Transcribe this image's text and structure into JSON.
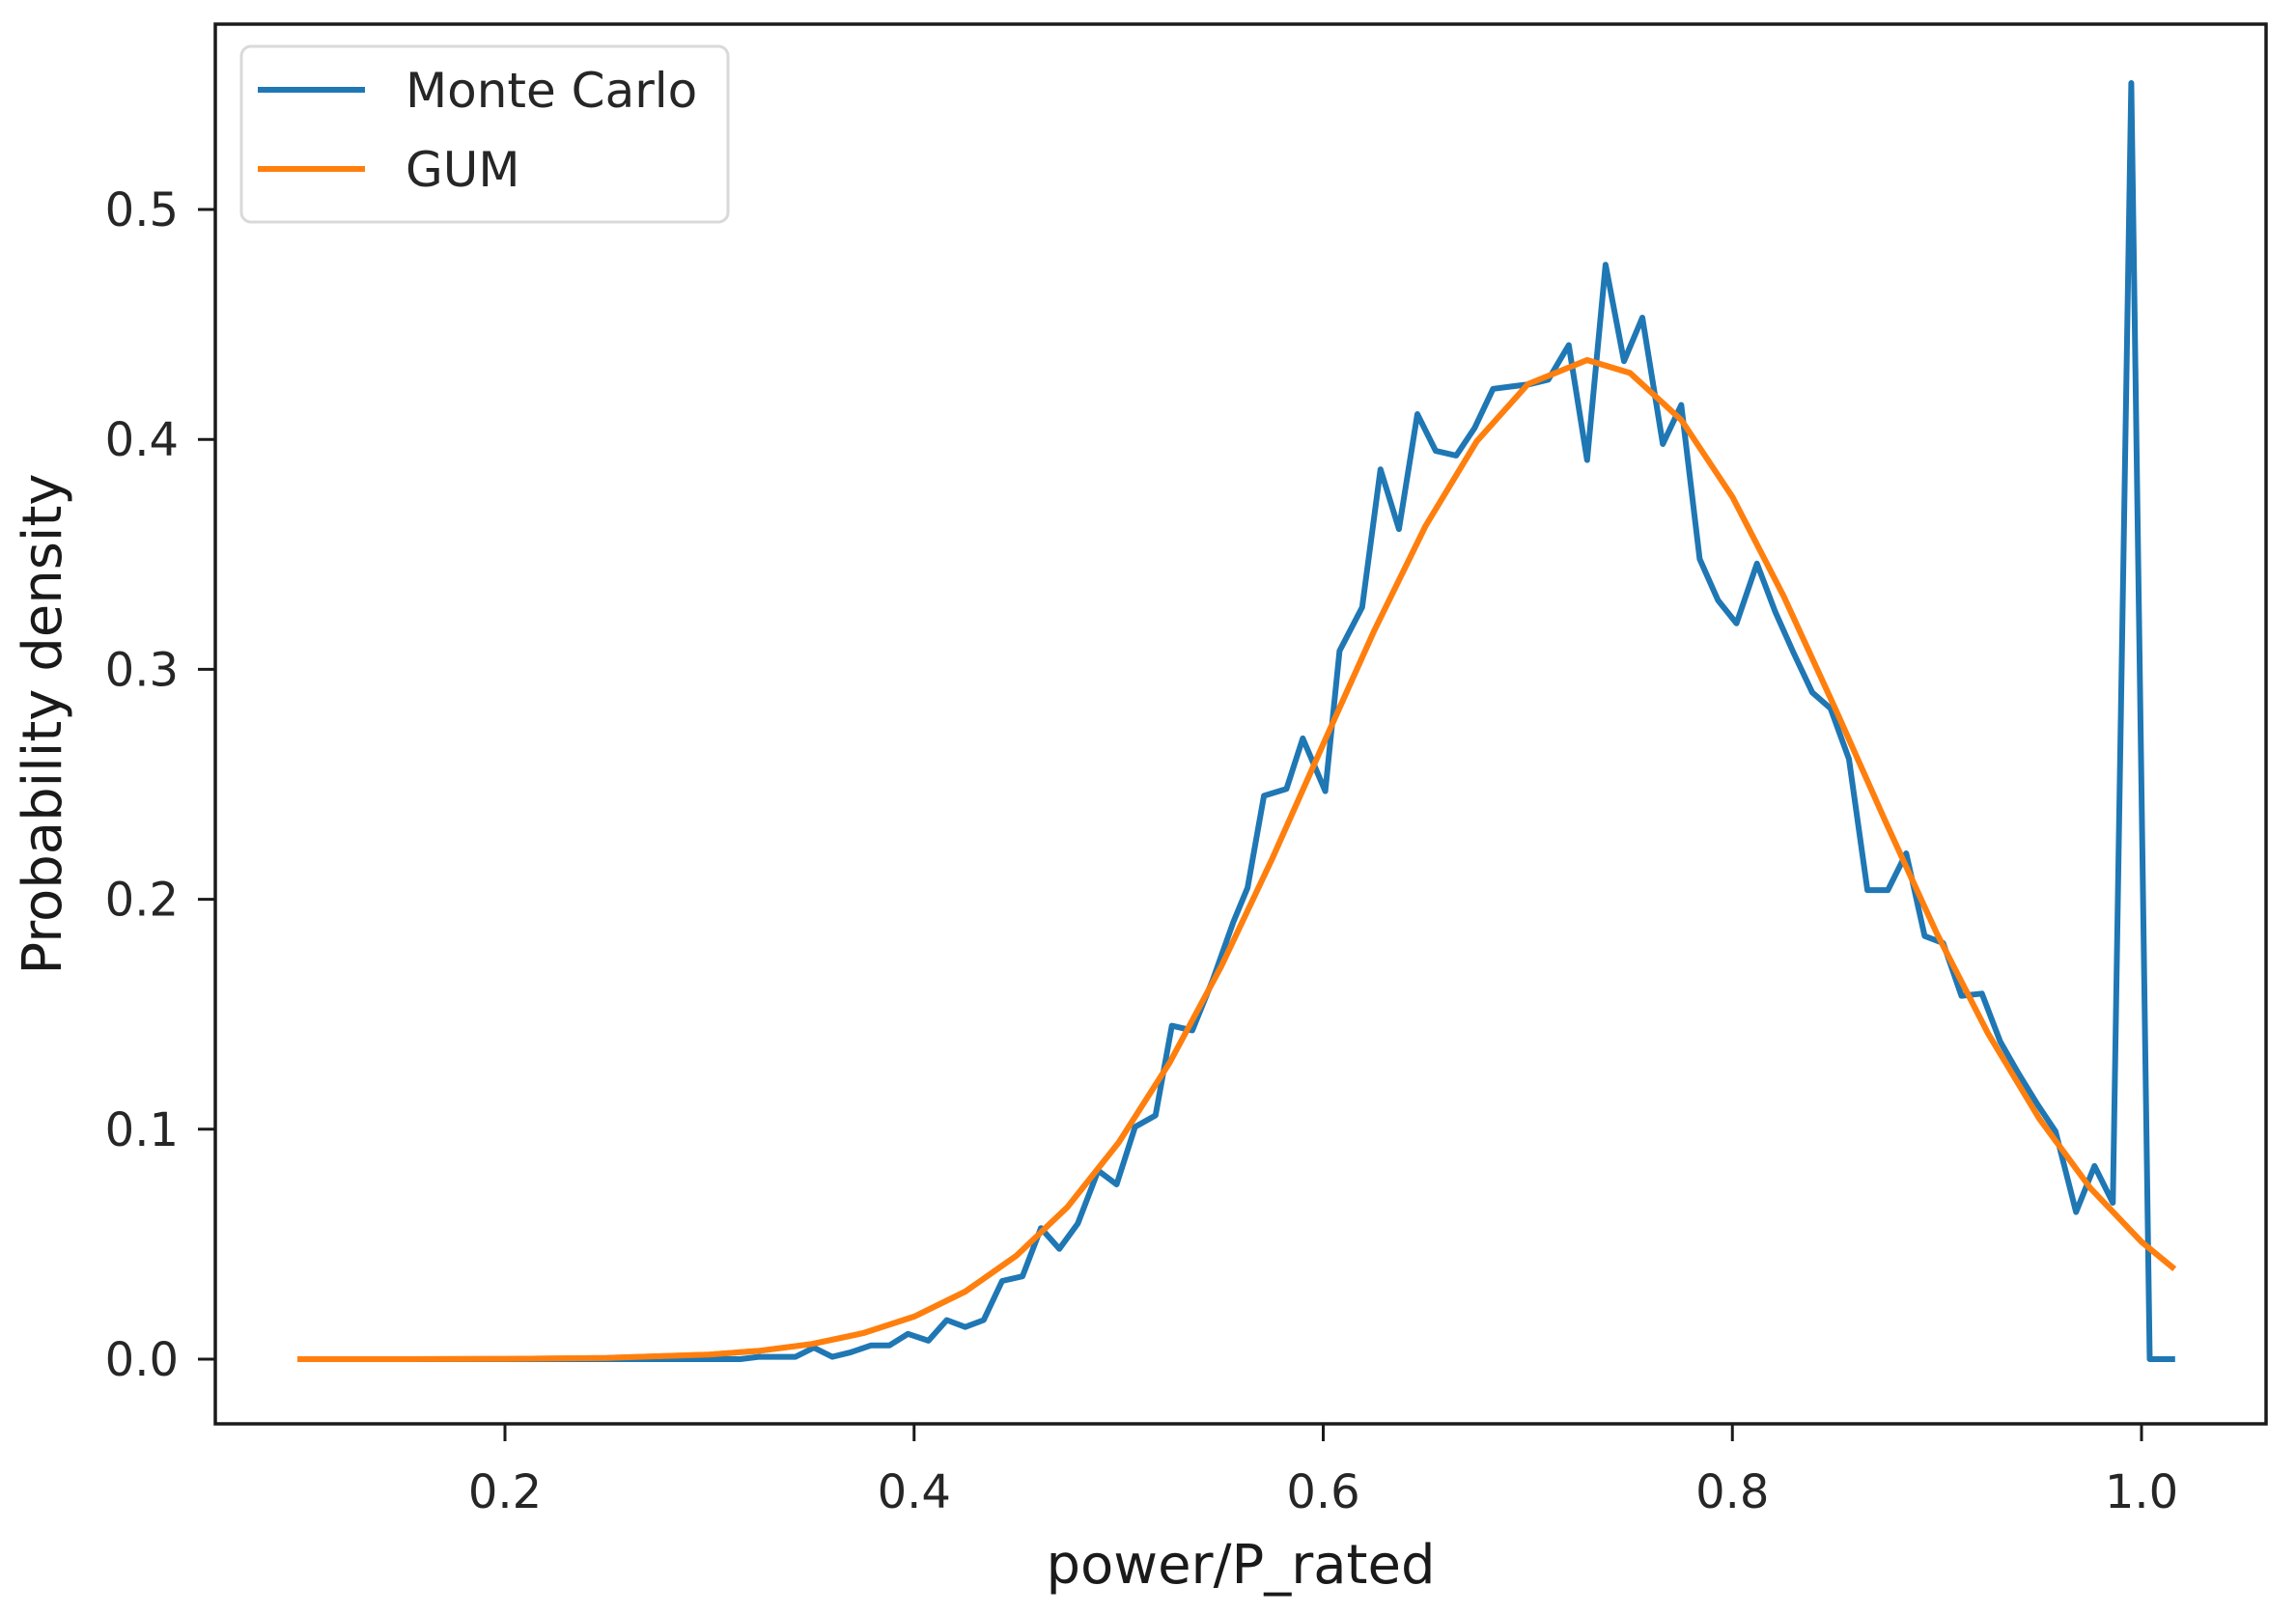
{
  "chart_data": {
    "type": "line",
    "title": "",
    "xlabel": "power/P_rated",
    "ylabel": "Probability density",
    "xlim": [
      0.0575,
      1.0605
    ],
    "ylim": [
      -0.028,
      0.581
    ],
    "xticks": [
      0.2,
      0.4,
      0.6,
      0.8,
      1.0
    ],
    "xtick_labels": [
      "0.2",
      "0.4",
      "0.6",
      "0.8",
      "1.0"
    ],
    "yticks": [
      0.0,
      0.1,
      0.2,
      0.3,
      0.4,
      0.5
    ],
    "ytick_labels": [
      "0.0",
      "0.1",
      "0.2",
      "0.3",
      "0.4",
      "0.5"
    ],
    "grid": false,
    "legend_position": "upper left",
    "series": [
      {
        "name": "Monte Carlo",
        "color": "#1f77b4",
        "x": [
          0.102,
          0.15,
          0.2,
          0.25,
          0.3,
          0.315,
          0.324,
          0.333,
          0.342,
          0.351,
          0.36,
          0.369,
          0.379,
          0.388,
          0.397,
          0.407,
          0.416,
          0.425,
          0.434,
          0.443,
          0.453,
          0.462,
          0.471,
          0.48,
          0.49,
          0.499,
          0.508,
          0.518,
          0.526,
          0.536,
          0.546,
          0.556,
          0.563,
          0.571,
          0.582,
          0.59,
          0.601,
          0.608,
          0.619,
          0.628,
          0.637,
          0.646,
          0.655,
          0.665,
          0.674,
          0.683,
          0.692,
          0.701,
          0.71,
          0.72,
          0.729,
          0.738,
          0.747,
          0.756,
          0.766,
          0.775,
          0.784,
          0.793,
          0.802,
          0.812,
          0.821,
          0.83,
          0.839,
          0.848,
          0.857,
          0.866,
          0.876,
          0.885,
          0.894,
          0.903,
          0.912,
          0.922,
          0.931,
          0.94,
          0.949,
          0.958,
          0.968,
          0.977,
          0.986,
          0.995,
          1.004,
          1.015
        ],
        "y": [
          0.0,
          0.0,
          0.0,
          0.0,
          0.0,
          0.0,
          0.001,
          0.001,
          0.001,
          0.005,
          0.001,
          0.003,
          0.006,
          0.006,
          0.011,
          0.008,
          0.017,
          0.014,
          0.017,
          0.034,
          0.036,
          0.057,
          0.048,
          0.059,
          0.082,
          0.076,
          0.101,
          0.106,
          0.145,
          0.143,
          0.165,
          0.19,
          0.205,
          0.245,
          0.248,
          0.27,
          0.247,
          0.308,
          0.327,
          0.387,
          0.361,
          0.411,
          0.395,
          0.393,
          0.405,
          0.422,
          0.423,
          0.424,
          0.426,
          0.441,
          0.391,
          0.476,
          0.434,
          0.453,
          0.398,
          0.415,
          0.348,
          0.33,
          0.32,
          0.346,
          0.325,
          0.307,
          0.29,
          0.283,
          0.261,
          0.204,
          0.204,
          0.22,
          0.184,
          0.181,
          0.158,
          0.159,
          0.138,
          0.124,
          0.111,
          0.099,
          0.064,
          0.084,
          0.068,
          0.555,
          0.0,
          0.0
        ]
      },
      {
        "name": "GUM",
        "color": "#ff7f0e",
        "x": [
          0.1,
          0.15,
          0.2,
          0.25,
          0.3,
          0.325,
          0.35,
          0.375,
          0.4,
          0.425,
          0.45,
          0.475,
          0.5,
          0.525,
          0.55,
          0.575,
          0.6,
          0.625,
          0.65,
          0.675,
          0.7,
          0.729,
          0.75,
          0.775,
          0.8,
          0.825,
          0.85,
          0.875,
          0.9,
          0.925,
          0.95,
          0.975,
          1.0,
          1.015
        ],
        "y": [
          0.0,
          2e-05,
          0.00012,
          0.00054,
          0.002,
          0.0037,
          0.0066,
          0.0113,
          0.0185,
          0.0294,
          0.045,
          0.0662,
          0.0942,
          0.1291,
          0.1706,
          0.2175,
          0.2675,
          0.317,
          0.3623,
          0.3991,
          0.424,
          0.4345,
          0.4289,
          0.4085,
          0.375,
          0.332,
          0.2835,
          0.2335,
          0.185,
          0.1416,
          0.1046,
          0.0744,
          0.051,
          0.04
        ]
      }
    ]
  },
  "legend": {
    "items": [
      {
        "label": "Monte Carlo",
        "color": "#1f77b4"
      },
      {
        "label": "GUM",
        "color": "#ff7f0e"
      }
    ]
  },
  "axes": {
    "xlabel": "power/P_rated",
    "ylabel": "Probability density",
    "frame_color": "#1a1a1a"
  }
}
